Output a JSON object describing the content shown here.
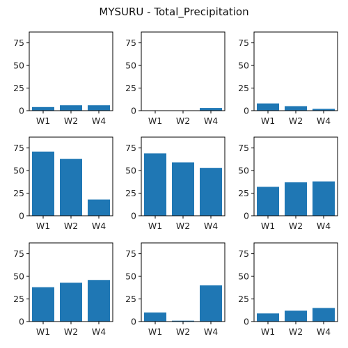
{
  "title": "MYSURU - Total_Precipitation",
  "colors": {
    "bar": "#1f77b4",
    "axis": "#000000",
    "background": "#ffffff"
  },
  "chart_data": [
    {
      "type": "bar",
      "categories": [
        "W1",
        "W2",
        "W4"
      ],
      "values": [
        4,
        6,
        6
      ],
      "ylim": [
        0,
        87
      ],
      "yticks": [
        0,
        25,
        50,
        75
      ]
    },
    {
      "type": "bar",
      "categories": [
        "W1",
        "W2",
        "W4"
      ],
      "values": [
        0,
        0,
        3
      ],
      "ylim": [
        0,
        87
      ],
      "yticks": [
        0,
        25,
        50,
        75
      ]
    },
    {
      "type": "bar",
      "categories": [
        "W1",
        "W2",
        "W4"
      ],
      "values": [
        8,
        5,
        2
      ],
      "ylim": [
        0,
        87
      ],
      "yticks": [
        0,
        25,
        50,
        75
      ]
    },
    {
      "type": "bar",
      "categories": [
        "W1",
        "W2",
        "W4"
      ],
      "values": [
        71,
        63,
        18
      ],
      "ylim": [
        0,
        87
      ],
      "yticks": [
        0,
        25,
        50,
        75
      ]
    },
    {
      "type": "bar",
      "categories": [
        "W1",
        "W2",
        "W4"
      ],
      "values": [
        69,
        59,
        53
      ],
      "ylim": [
        0,
        87
      ],
      "yticks": [
        0,
        25,
        50,
        75
      ]
    },
    {
      "type": "bar",
      "categories": [
        "W1",
        "W2",
        "W4"
      ],
      "values": [
        32,
        37,
        38
      ],
      "ylim": [
        0,
        87
      ],
      "yticks": [
        0,
        25,
        50,
        75
      ]
    },
    {
      "type": "bar",
      "categories": [
        "W1",
        "W2",
        "W4"
      ],
      "values": [
        38,
        43,
        46
      ],
      "ylim": [
        0,
        87
      ],
      "yticks": [
        0,
        25,
        50,
        75
      ]
    },
    {
      "type": "bar",
      "categories": [
        "W1",
        "W2",
        "W4"
      ],
      "values": [
        10,
        1,
        40
      ],
      "ylim": [
        0,
        87
      ],
      "yticks": [
        0,
        25,
        50,
        75
      ]
    },
    {
      "type": "bar",
      "categories": [
        "W1",
        "W2",
        "W4"
      ],
      "values": [
        9,
        12,
        15
      ],
      "ylim": [
        0,
        87
      ],
      "yticks": [
        0,
        25,
        50,
        75
      ]
    }
  ]
}
